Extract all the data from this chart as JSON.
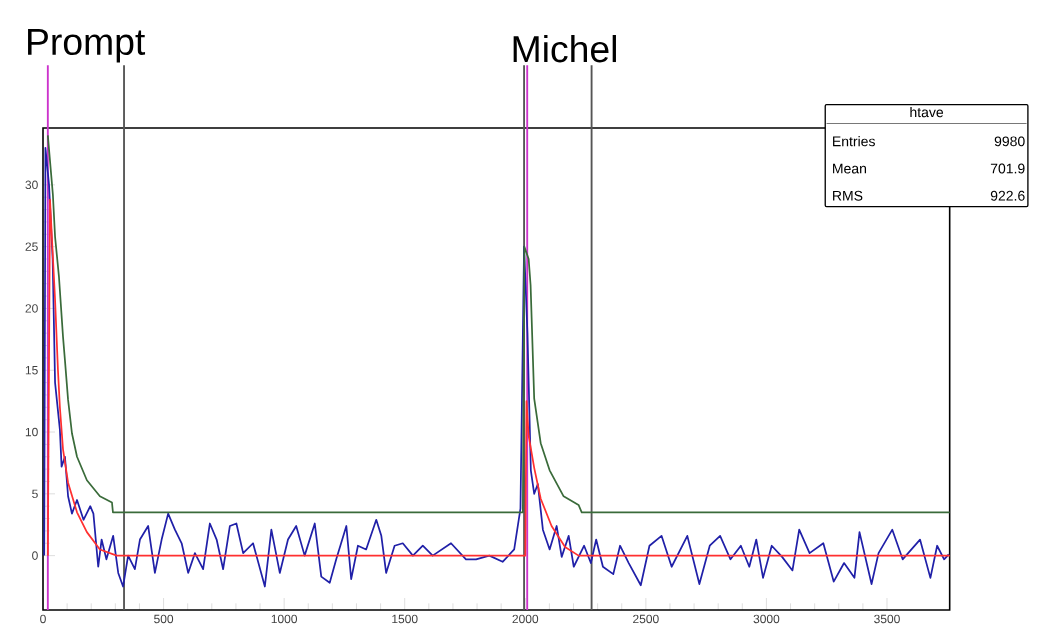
{
  "chart_data": {
    "type": "line",
    "xlim": [
      0,
      3760
    ],
    "ylim": [
      -4.4,
      34.6
    ],
    "xticks": [
      0,
      500,
      1000,
      1500,
      2000,
      2500,
      3000,
      3500
    ],
    "yticks": [
      0,
      5,
      10,
      15,
      20,
      25,
      30
    ],
    "grid": false,
    "series": [
      {
        "color": "#2020a8",
        "x": [
          5,
          10,
          25,
          40,
          50,
          70,
          77,
          91,
          104,
          120,
          141,
          168,
          196,
          209,
          229,
          243,
          263,
          291,
          312,
          332,
          353,
          381,
          402,
          436,
          464,
          492,
          519,
          547,
          575,
          602,
          630,
          664,
          692,
          720,
          747,
          775,
          802,
          830,
          871,
          920,
          947,
          982,
          1016,
          1050,
          1085,
          1127,
          1154,
          1189,
          1216,
          1258,
          1278,
          1306,
          1340,
          1382,
          1403,
          1423,
          1458,
          1492,
          1534,
          1575,
          1616,
          1692,
          1754,
          1796,
          1851,
          1906,
          1954,
          1980,
          1995,
          2009,
          2023,
          2037,
          2052,
          2073,
          2101,
          2130,
          2151,
          2180,
          2201,
          2244,
          2272,
          2294,
          2322,
          2365,
          2393,
          2429,
          2479,
          2515,
          2565,
          2607,
          2672,
          2722,
          2765,
          2808,
          2851,
          2894,
          2929,
          2958,
          2986,
          3022,
          3065,
          3108,
          3136,
          3179,
          3236,
          3279,
          3322,
          3365,
          3386,
          3436,
          3465,
          3522,
          3565,
          3637,
          3680,
          3708,
          3737,
          3756
        ],
        "values": [
          0,
          33,
          30,
          24,
          14,
          10.2,
          7.2,
          8,
          4.8,
          3.4,
          4.5,
          2.9,
          4,
          3.4,
          -0.9,
          1.3,
          -0.3,
          1.6,
          -1.4,
          -2.5,
          0,
          -1.1,
          1.3,
          2.4,
          -1.4,
          1.3,
          3.4,
          2.1,
          1,
          -1.4,
          0.2,
          -1.1,
          2.6,
          1.3,
          -1.1,
          2.4,
          2.6,
          0.2,
          1,
          -2.5,
          2.1,
          -1.4,
          1.3,
          2.4,
          0,
          2.6,
          -1.7,
          -2.2,
          -0.3,
          2.4,
          -1.9,
          0.8,
          0.5,
          2.9,
          1.6,
          -1.4,
          0.8,
          1,
          0,
          0.8,
          0,
          1,
          -0.3,
          -0.3,
          0,
          -0.5,
          0.5,
          3.8,
          25,
          18,
          6.9,
          5,
          5.8,
          2.1,
          0.5,
          2.4,
          -0.1,
          1.6,
          -0.9,
          0.8,
          -0.6,
          1.3,
          -0.9,
          -1.5,
          0.8,
          -0.6,
          -2.4,
          0.8,
          1.6,
          -0.9,
          1.6,
          -2.3,
          0.8,
          1.6,
          -0.3,
          0.8,
          -0.9,
          1.3,
          -1.8,
          0.8,
          -0.1,
          -1.2,
          2.1,
          0.2,
          1,
          -2.1,
          -0.6,
          -1.8,
          1.9,
          -2.3,
          0.2,
          2.1,
          -0.3,
          1.3,
          -1.8,
          0.8,
          -0.3,
          0.1
        ]
      },
      {
        "color": "#3a6b3a",
        "x": [
          20,
          41,
          50,
          66,
          83,
          91,
          104,
          120,
          141,
          182,
          236,
          286,
          290,
          1990,
          1996,
          2014,
          2022,
          2037,
          2064,
          2101,
          2159,
          2221,
          2234,
          3760
        ],
        "values": [
          34,
          29.2,
          25.8,
          22.6,
          17.7,
          15.8,
          12.6,
          9.9,
          8,
          6.1,
          4.8,
          4.3,
          3.5,
          3.5,
          25,
          24,
          21.9,
          12.7,
          9.1,
          6.9,
          4.8,
          4.1,
          3.5,
          3.5
        ]
      },
      {
        "color": "#ff3030",
        "x": [
          20,
          29,
          50,
          62,
          70,
          83,
          104,
          141,
          182,
          236,
          306,
          1990,
          2000,
          2005,
          2014,
          2037,
          2064,
          2109,
          2165,
          2221,
          3760
        ],
        "values": [
          0,
          28.8,
          20.7,
          15,
          12,
          8.6,
          5.9,
          3.5,
          1.9,
          0.5,
          0,
          0,
          0,
          12.5,
          9.7,
          7.1,
          4.6,
          2.4,
          0.7,
          0,
          0
        ]
      }
    ],
    "ref_lines": [
      {
        "axis": "x",
        "value": 20,
        "label": "Prompt",
        "color": "#cc33cc"
      },
      {
        "axis": "x",
        "value": 336,
        "color": "#555555"
      },
      {
        "axis": "x",
        "value": 1995,
        "color": "#555555"
      },
      {
        "axis": "x",
        "value": 2008,
        "label": "Michel",
        "color": "#cc33cc"
      },
      {
        "axis": "x",
        "value": 2275,
        "color": "#555555"
      }
    ],
    "annotations": [
      "htave",
      "Entries",
      "9980",
      "Mean",
      "701.9",
      "RMS",
      "922.6"
    ]
  }
}
